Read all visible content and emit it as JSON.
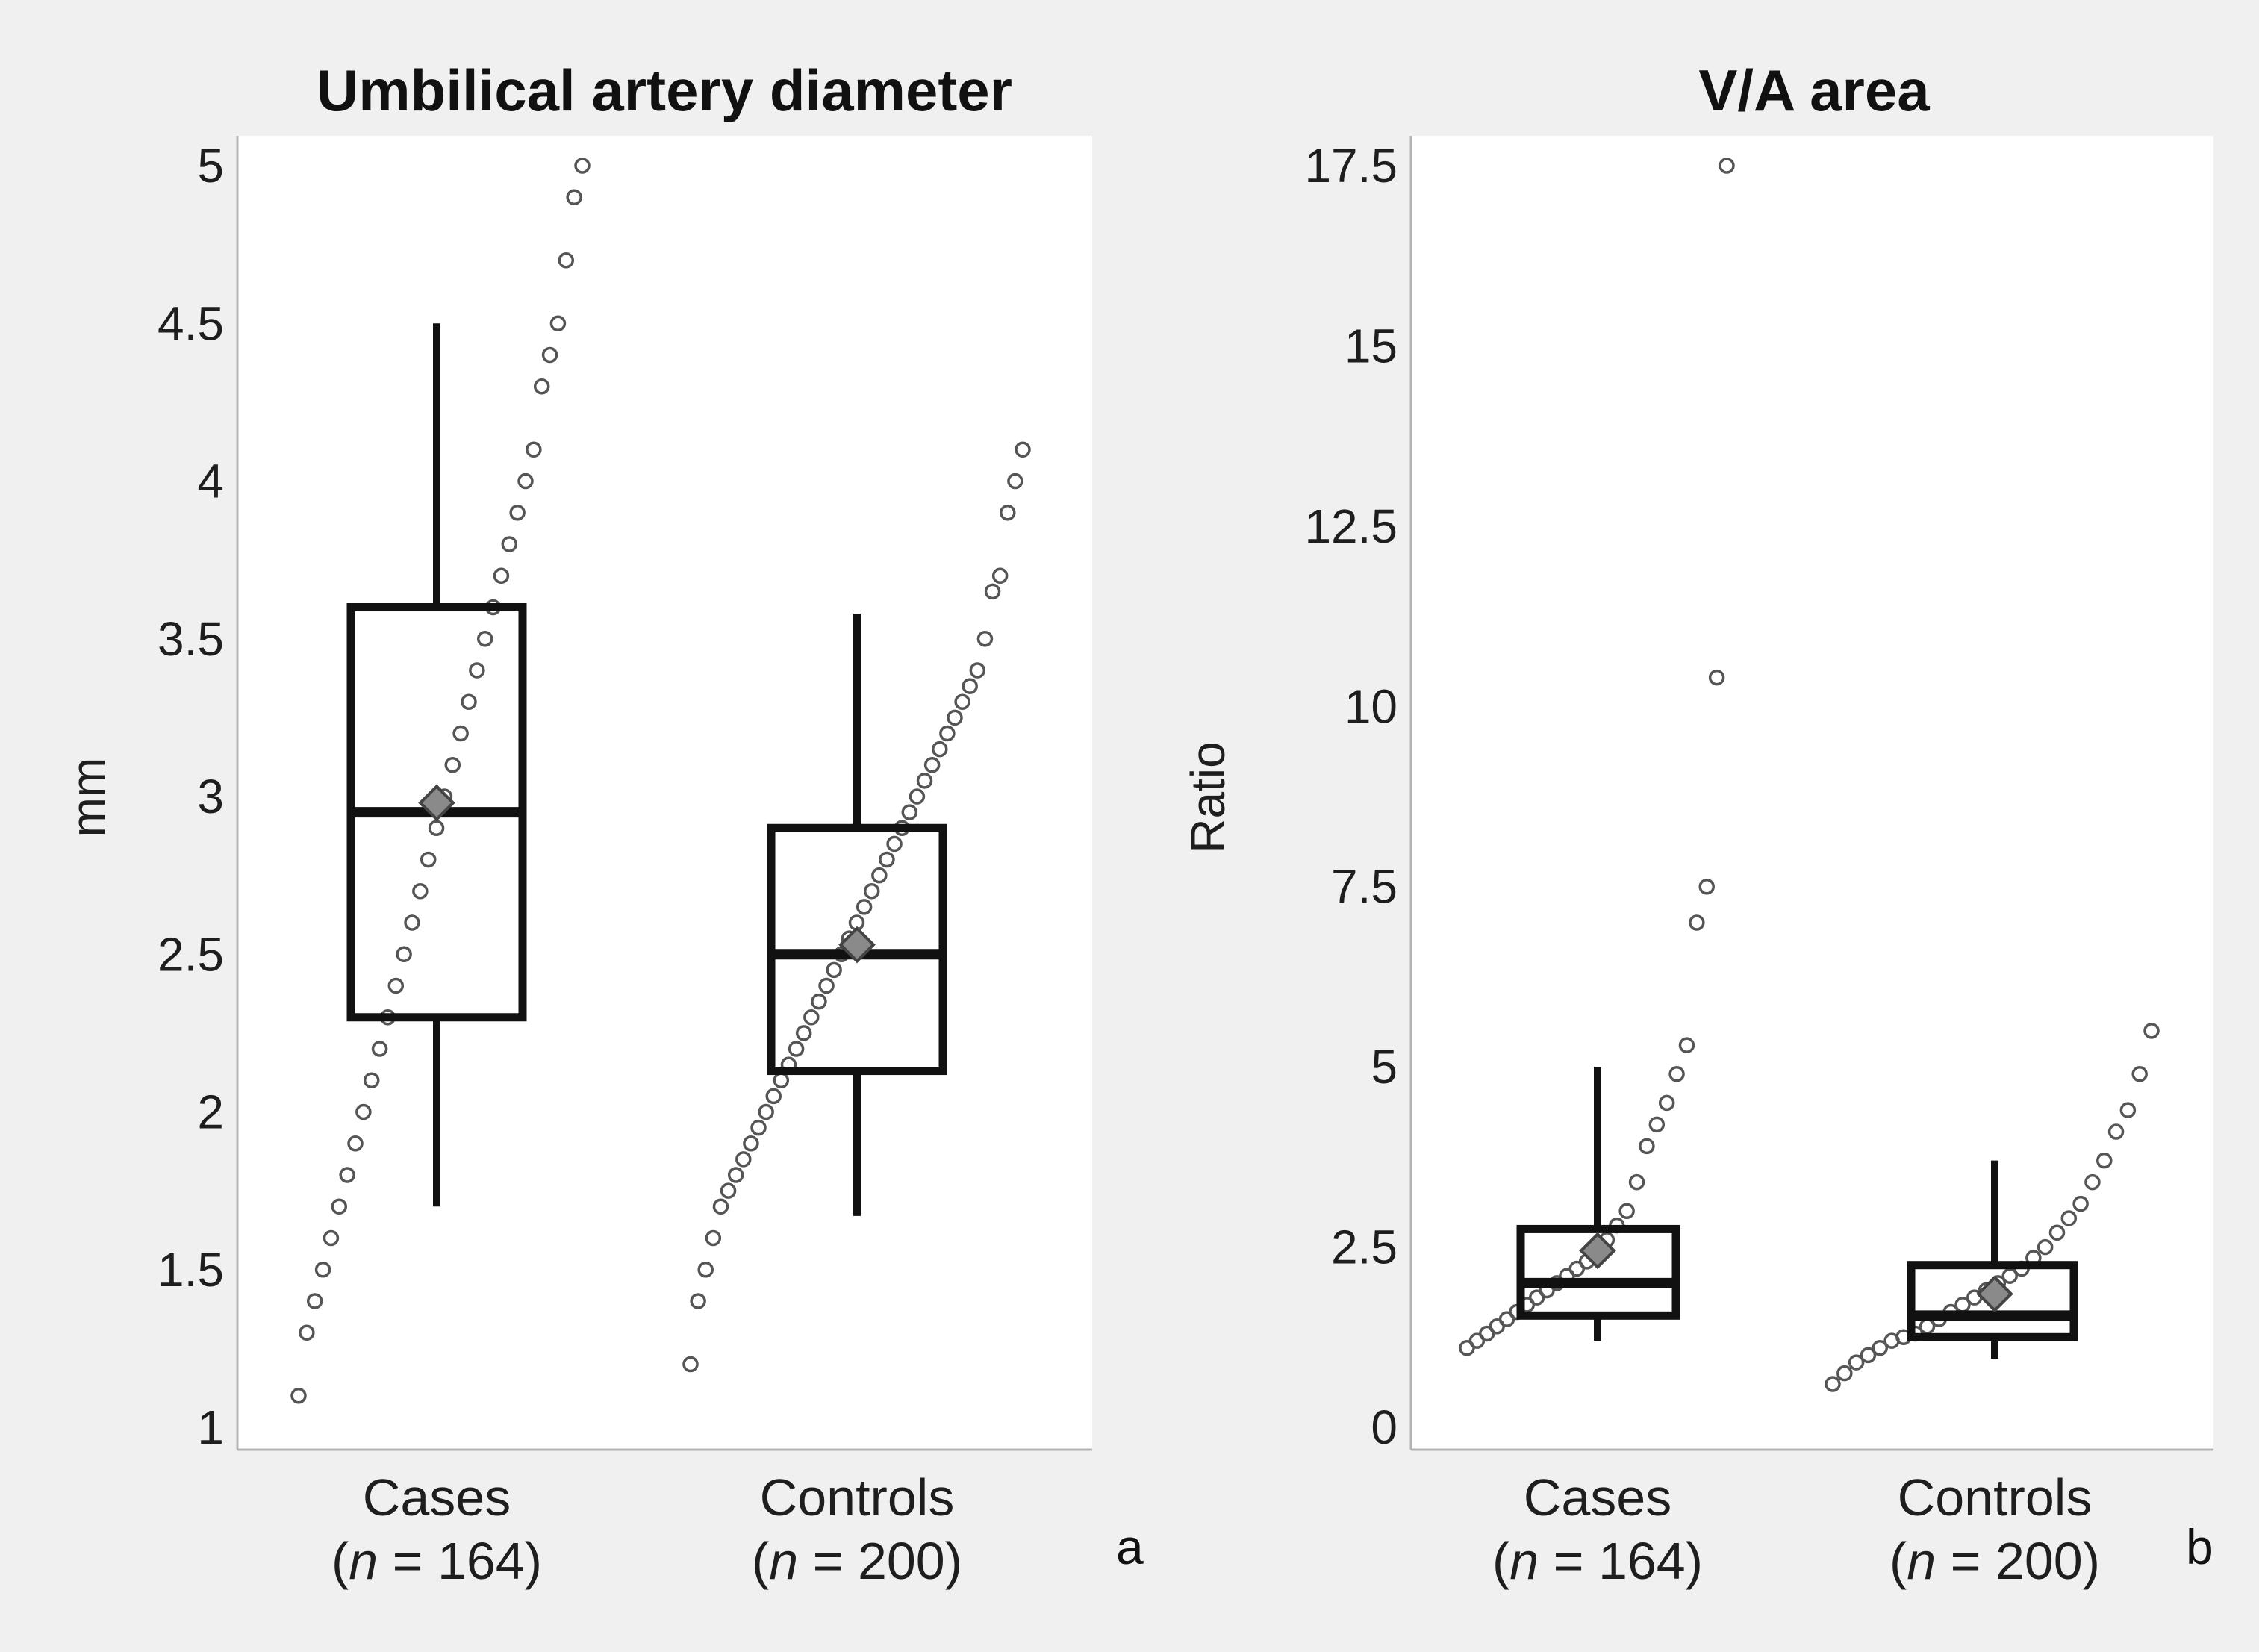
{
  "figure": {
    "panels": [
      "a",
      "b"
    ]
  },
  "chart_data": [
    {
      "type": "boxplot",
      "panel_label": "a",
      "title": "Umbilical artery diameter",
      "xlabel": "",
      "ylabel": "mm",
      "ylim": [
        1,
        5
      ],
      "yticks": [
        1,
        1.5,
        2,
        2.5,
        3,
        3.5,
        4,
        4.5,
        5
      ],
      "ytick_labels": [
        "1",
        "1.5",
        "2",
        "2.5",
        "3",
        "3.5",
        "4",
        "4.5",
        "5"
      ],
      "groups": [
        {
          "name": "Cases",
          "n_label": "(n = 164)",
          "n_prefix": "(",
          "n_var": "n",
          "n_suffix": " = 164)",
          "whisker_low": 1.7,
          "q1": 2.3,
          "median": 2.95,
          "q3": 3.6,
          "whisker_high": 4.5,
          "mean": 2.98,
          "points": [
            1.1,
            1.3,
            1.4,
            1.5,
            1.6,
            1.7,
            1.8,
            1.9,
            2.0,
            2.1,
            2.2,
            2.3,
            2.4,
            2.5,
            2.6,
            2.7,
            2.8,
            2.9,
            3.0,
            3.1,
            3.2,
            3.3,
            3.4,
            3.5,
            3.6,
            3.7,
            3.8,
            3.9,
            4.0,
            4.1,
            4.3,
            4.4,
            4.5,
            4.7,
            4.9,
            5.0
          ]
        },
        {
          "name": "Controls",
          "n_label": "(n = 200)",
          "n_prefix": "(",
          "n_var": "n",
          "n_suffix": " = 200)",
          "whisker_low": 1.67,
          "q1": 2.13,
          "median": 2.5,
          "q3": 2.9,
          "whisker_high": 3.58,
          "mean": 2.53,
          "points": [
            1.2,
            1.4,
            1.5,
            1.6,
            1.7,
            1.75,
            1.8,
            1.85,
            1.9,
            1.95,
            2.0,
            2.05,
            2.1,
            2.15,
            2.2,
            2.25,
            2.3,
            2.35,
            2.4,
            2.45,
            2.5,
            2.55,
            2.6,
            2.65,
            2.7,
            2.75,
            2.8,
            2.85,
            2.9,
            2.95,
            3.0,
            3.05,
            3.1,
            3.15,
            3.2,
            3.25,
            3.3,
            3.35,
            3.4,
            3.5,
            3.65,
            3.7,
            3.9,
            4.0,
            4.1
          ]
        }
      ]
    },
    {
      "type": "boxplot",
      "panel_label": "b",
      "title": "V/A area",
      "xlabel": "",
      "ylabel": "Ratio",
      "ylim": [
        0,
        17.5
      ],
      "yticks": [
        0,
        2.5,
        5,
        7.5,
        10,
        12.5,
        15,
        17.5
      ],
      "ytick_labels": [
        "0",
        "2.5",
        "5",
        "7.5",
        "10",
        "12.5",
        "15",
        "17.5"
      ],
      "groups": [
        {
          "name": "Cases",
          "n_label": "(n = 164)",
          "n_prefix": "(",
          "n_var": "n",
          "n_suffix": " = 164)",
          "whisker_low": 1.2,
          "q1": 1.55,
          "median": 2.0,
          "q3": 2.75,
          "whisker_high": 5.0,
          "mean": 2.45,
          "points": [
            1.1,
            1.2,
            1.3,
            1.4,
            1.5,
            1.6,
            1.7,
            1.8,
            1.9,
            2.0,
            2.1,
            2.2,
            2.3,
            2.45,
            2.6,
            2.8,
            3.0,
            3.4,
            3.9,
            4.2,
            4.5,
            4.9,
            5.3,
            7.0,
            7.5,
            10.4,
            17.5
          ]
        },
        {
          "name": "Controls",
          "n_label": "(n = 200)",
          "n_prefix": "(",
          "n_var": "n",
          "n_suffix": " = 200)",
          "whisker_low": 0.95,
          "q1": 1.25,
          "median": 1.55,
          "q3": 2.25,
          "whisker_high": 3.7,
          "mean": 1.85,
          "points": [
            0.6,
            0.75,
            0.9,
            1.0,
            1.1,
            1.2,
            1.25,
            1.3,
            1.4,
            1.5,
            1.6,
            1.7,
            1.8,
            1.9,
            2.0,
            2.1,
            2.2,
            2.35,
            2.5,
            2.7,
            2.9,
            3.1,
            3.4,
            3.7,
            4.1,
            4.4,
            4.9,
            5.5
          ]
        }
      ]
    }
  ]
}
